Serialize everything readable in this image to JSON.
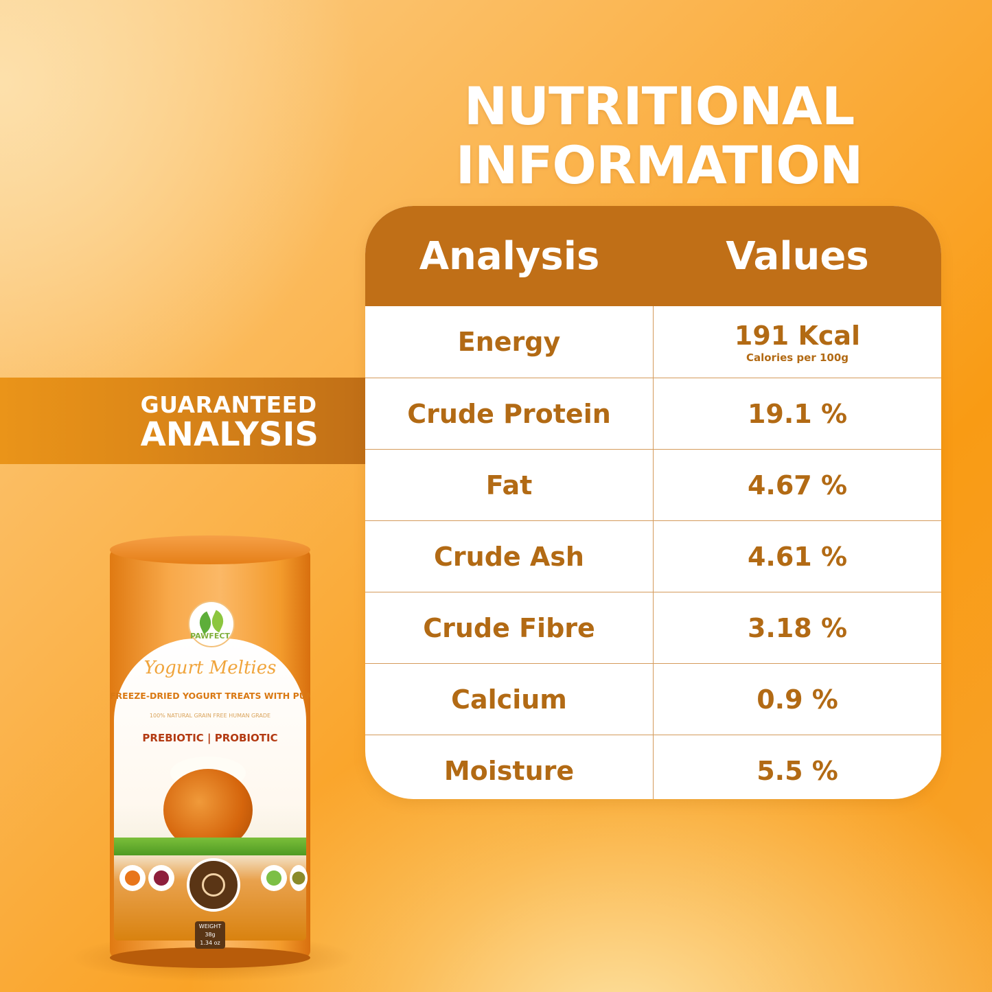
{
  "title": {
    "line1": "NUTRITIONAL",
    "line2": "INFORMATION"
  },
  "band": {
    "line1": "GUARANTEED",
    "line2": "ANALYSIS"
  },
  "table": {
    "headers": [
      "Analysis",
      "Values"
    ],
    "rows": [
      {
        "analysis": "Energy",
        "value": "191 Kcal",
        "note": "Calories per 100g"
      },
      {
        "analysis": "Crude Protein",
        "value": "19.1 %"
      },
      {
        "analysis": "Fat",
        "value": "4.67 %"
      },
      {
        "analysis": "Crude Ash",
        "value": "4.61 %"
      },
      {
        "analysis": "Crude Fibre",
        "value": "3.18 %"
      },
      {
        "analysis": "Calcium",
        "value": "0.9 %"
      },
      {
        "analysis": "Moisture",
        "value": "5.5 %"
      }
    ]
  },
  "product": {
    "brand": "PAWFECT",
    "name": "Yogurt Melties",
    "tagline": "FREEZE-DRIED YOGURT TREATS WITH PUMPKIN",
    "badges": "100% NATURAL   GRAIN FREE   HUMAN GRADE",
    "biotic": "PREBIOTIC | PROBIOTIC",
    "weight_label": "WEIGHT",
    "weight": "38g",
    "weight_oz": "1.34 oz"
  },
  "colors": {
    "accent": "#c06f17",
    "text": "#b26a14",
    "background": "#f99b14"
  }
}
